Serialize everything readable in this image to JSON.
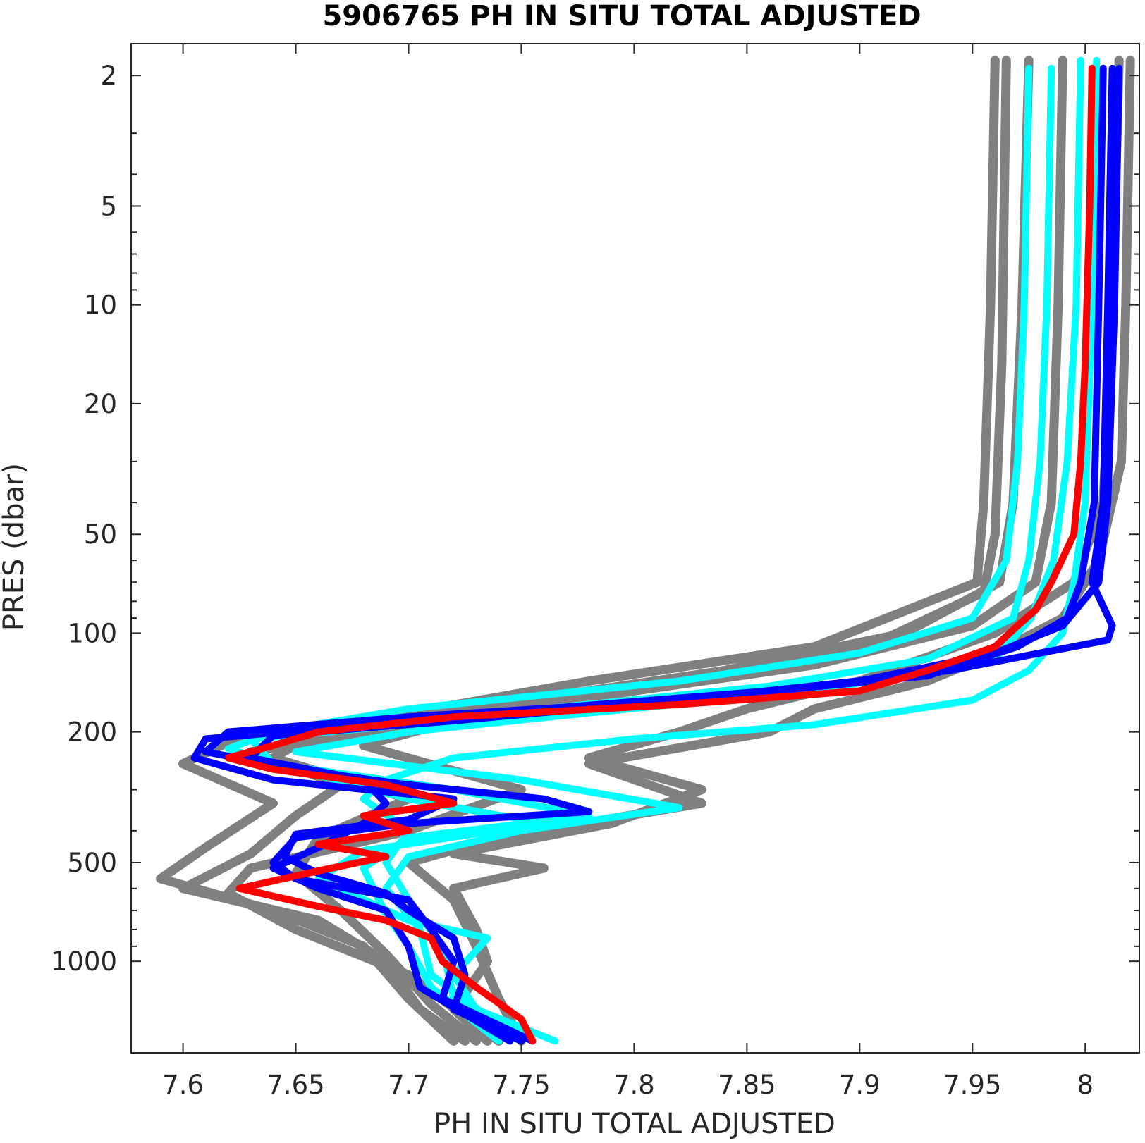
{
  "chart_data": {
    "type": "line",
    "title": "5906765  PH IN SITU TOTAL ADJUSTED",
    "xlabel": "PH IN SITU TOTAL ADJUSTED",
    "ylabel": "PRES (dbar)",
    "xlim": [
      7.577,
      8.024
    ],
    "ylim": [
      1.6,
      1900
    ],
    "y_scale": "log",
    "y_reversed": true,
    "grid": false,
    "x_ticks": [
      7.6,
      7.65,
      7.7,
      7.75,
      7.8,
      7.85,
      7.9,
      7.95,
      8.0
    ],
    "x_tick_labels": [
      "7.6",
      "7.65",
      "7.7",
      "7.75",
      "7.8",
      "7.85",
      "7.9",
      "7.95",
      "8"
    ],
    "y_ticks": [
      2,
      5,
      10,
      20,
      50,
      100,
      200,
      500,
      1000
    ],
    "y_tick_labels": [
      "2",
      "5",
      "10",
      "20",
      "50",
      "100",
      "200",
      "500",
      "1000"
    ],
    "colors": {
      "gray": "#808080",
      "cyan": "#00ffff",
      "blue": "#0000ff",
      "red": "#ff0000"
    },
    "series": [
      {
        "color": "gray",
        "points": [
          [
            7.96,
            1.8
          ],
          [
            7.958,
            10
          ],
          [
            7.955,
            40
          ],
          [
            7.952,
            70
          ],
          [
            7.88,
            110
          ],
          [
            7.78,
            140
          ],
          [
            7.7,
            175
          ],
          [
            7.62,
            215
          ],
          [
            7.6,
            250
          ],
          [
            7.64,
            330
          ],
          [
            7.61,
            450
          ],
          [
            7.59,
            560
          ],
          [
            7.64,
            700
          ],
          [
            7.68,
            900
          ],
          [
            7.7,
            1300
          ],
          [
            7.72,
            1750
          ]
        ]
      },
      {
        "color": "gray",
        "points": [
          [
            7.975,
            1.8
          ],
          [
            7.972,
            10
          ],
          [
            7.968,
            40
          ],
          [
            7.962,
            70
          ],
          [
            7.92,
            100
          ],
          [
            7.84,
            130
          ],
          [
            7.74,
            165
          ],
          [
            7.66,
            200
          ],
          [
            7.64,
            240
          ],
          [
            7.7,
            320
          ],
          [
            7.66,
            420
          ],
          [
            7.65,
            540
          ],
          [
            7.67,
            700
          ],
          [
            7.69,
            950
          ],
          [
            7.71,
            1350
          ],
          [
            7.73,
            1750
          ]
        ]
      },
      {
        "color": "gray",
        "points": [
          [
            7.99,
            1.8
          ],
          [
            7.988,
            10
          ],
          [
            7.985,
            40
          ],
          [
            7.978,
            70
          ],
          [
            7.95,
            95
          ],
          [
            7.88,
            125
          ],
          [
            7.8,
            150
          ],
          [
            7.72,
            185
          ],
          [
            7.68,
            220
          ],
          [
            7.75,
            300
          ],
          [
            7.7,
            400
          ],
          [
            7.63,
            520
          ],
          [
            7.62,
            620
          ],
          [
            7.65,
            800
          ],
          [
            7.7,
            1100
          ],
          [
            7.74,
            1750
          ]
        ]
      },
      {
        "color": "gray",
        "points": [
          [
            8.015,
            1.8
          ],
          [
            8.012,
            10
          ],
          [
            8.008,
            40
          ],
          [
            7.995,
            70
          ],
          [
            7.96,
            100
          ],
          [
            7.9,
            140
          ],
          [
            7.85,
            170
          ],
          [
            7.82,
            200
          ],
          [
            7.78,
            240
          ],
          [
            7.83,
            300
          ],
          [
            7.79,
            380
          ],
          [
            7.72,
            470
          ],
          [
            7.76,
            520
          ],
          [
            7.72,
            600
          ],
          [
            7.73,
            800
          ],
          [
            7.735,
            1000
          ],
          [
            7.72,
            1400
          ],
          [
            7.735,
            1750
          ]
        ]
      },
      {
        "color": "gray",
        "points": [
          [
            8.02,
            1.8
          ],
          [
            8.018,
            10
          ],
          [
            8.016,
            30
          ],
          [
            8.006,
            60
          ],
          [
            7.99,
            90
          ],
          [
            7.96,
            115
          ],
          [
            7.93,
            140
          ],
          [
            7.88,
            170
          ],
          [
            7.86,
            200
          ],
          [
            7.78,
            250
          ],
          [
            7.83,
            330
          ],
          [
            7.74,
            420
          ],
          [
            7.7,
            500
          ],
          [
            7.72,
            650
          ],
          [
            7.73,
            900
          ],
          [
            7.74,
            1300
          ],
          [
            7.75,
            1750
          ]
        ]
      },
      {
        "color": "gray",
        "points": [
          [
            7.965,
            1.8
          ],
          [
            7.963,
            15
          ],
          [
            7.96,
            50
          ],
          [
            7.955,
            75
          ],
          [
            7.91,
            105
          ],
          [
            7.83,
            135
          ],
          [
            7.76,
            160
          ],
          [
            7.7,
            190
          ],
          [
            7.63,
            230
          ],
          [
            7.67,
            290
          ],
          [
            7.65,
            360
          ],
          [
            7.63,
            470
          ],
          [
            7.6,
            600
          ],
          [
            7.66,
            750
          ],
          [
            7.69,
            1000
          ],
          [
            7.705,
            1400
          ],
          [
            7.725,
            1750
          ]
        ]
      },
      {
        "color": "cyan",
        "points": [
          [
            7.975,
            1.9
          ],
          [
            7.973,
            10
          ],
          [
            7.97,
            30
          ],
          [
            7.965,
            60
          ],
          [
            7.95,
            90
          ],
          [
            7.9,
            115
          ],
          [
            7.82,
            140
          ],
          [
            7.7,
            170
          ],
          [
            7.64,
            200
          ],
          [
            7.62,
            225
          ],
          [
            7.65,
            260
          ],
          [
            7.7,
            320
          ],
          [
            7.76,
            380
          ],
          [
            7.68,
            460
          ],
          [
            7.66,
            560
          ],
          [
            7.7,
            750
          ],
          [
            7.735,
            850
          ],
          [
            7.72,
            1100
          ],
          [
            7.73,
            1400
          ],
          [
            7.765,
            1750
          ]
        ]
      },
      {
        "color": "cyan",
        "points": [
          [
            7.985,
            1.9
          ],
          [
            7.983,
            10
          ],
          [
            7.98,
            30
          ],
          [
            7.975,
            60
          ],
          [
            7.968,
            90
          ],
          [
            7.93,
            120
          ],
          [
            7.86,
            145
          ],
          [
            7.76,
            170
          ],
          [
            7.7,
            190
          ],
          [
            7.63,
            210
          ],
          [
            7.64,
            250
          ],
          [
            7.72,
            300
          ],
          [
            7.78,
            360
          ],
          [
            7.7,
            420
          ],
          [
            7.68,
            520
          ],
          [
            7.69,
            720
          ],
          [
            7.7,
            900
          ],
          [
            7.71,
            1200
          ],
          [
            7.74,
            1750
          ]
        ]
      },
      {
        "color": "cyan",
        "points": [
          [
            7.998,
            1.8
          ],
          [
            7.996,
            10
          ],
          [
            7.992,
            30
          ],
          [
            7.986,
            60
          ],
          [
            7.976,
            90
          ],
          [
            7.96,
            120
          ],
          [
            7.88,
            150
          ],
          [
            7.78,
            175
          ],
          [
            7.7,
            200
          ],
          [
            7.65,
            230
          ],
          [
            7.75,
            280
          ],
          [
            7.82,
            340
          ],
          [
            7.75,
            400
          ],
          [
            7.7,
            480
          ],
          [
            7.69,
            600
          ],
          [
            7.705,
            800
          ],
          [
            7.71,
            1100
          ],
          [
            7.75,
            1750
          ]
        ]
      },
      {
        "color": "cyan",
        "points": [
          [
            8.005,
            1.8
          ],
          [
            8.003,
            10
          ],
          [
            8.0,
            40
          ],
          [
            7.995,
            70
          ],
          [
            7.99,
            100
          ],
          [
            7.975,
            130
          ],
          [
            7.95,
            160
          ],
          [
            7.88,
            190
          ],
          [
            7.8,
            210
          ],
          [
            7.72,
            240
          ],
          [
            7.69,
            280
          ],
          [
            7.68,
            320
          ],
          [
            7.7,
            400
          ],
          [
            7.69,
            500
          ],
          [
            7.7,
            650
          ],
          [
            7.715,
            900
          ],
          [
            7.72,
            1300
          ],
          [
            7.755,
            1750
          ]
        ]
      },
      {
        "color": "blue",
        "points": [
          [
            8.008,
            1.9
          ],
          [
            8.006,
            10
          ],
          [
            8.004,
            40
          ],
          [
            7.998,
            70
          ],
          [
            7.992,
            90
          ],
          [
            7.97,
            110
          ],
          [
            7.93,
            135
          ],
          [
            7.82,
            160
          ],
          [
            7.7,
            180
          ],
          [
            7.62,
            200
          ],
          [
            7.61,
            230
          ],
          [
            7.65,
            260
          ],
          [
            7.7,
            290
          ],
          [
            7.76,
            320
          ],
          [
            7.78,
            350
          ],
          [
            7.7,
            380
          ],
          [
            7.65,
            420
          ],
          [
            7.64,
            500
          ],
          [
            7.65,
            560
          ],
          [
            7.7,
            650
          ],
          [
            7.71,
            800
          ],
          [
            7.72,
            1000
          ],
          [
            7.715,
            1300
          ],
          [
            7.755,
            1750
          ]
        ]
      },
      {
        "color": "blue",
        "points": [
          [
            8.012,
            1.9
          ],
          [
            8.01,
            10
          ],
          [
            8.008,
            40
          ],
          [
            8.003,
            70
          ],
          [
            8.012,
            95
          ],
          [
            8.01,
            105
          ],
          [
            7.98,
            115
          ],
          [
            7.94,
            130
          ],
          [
            7.86,
            150
          ],
          [
            7.76,
            170
          ],
          [
            7.68,
            190
          ],
          [
            7.61,
            210
          ],
          [
            7.605,
            240
          ],
          [
            7.64,
            280
          ],
          [
            7.72,
            320
          ],
          [
            7.7,
            370
          ],
          [
            7.65,
            410
          ],
          [
            7.645,
            480
          ],
          [
            7.66,
            540
          ],
          [
            7.69,
            620
          ],
          [
            7.7,
            700
          ],
          [
            7.72,
            850
          ],
          [
            7.725,
            1100
          ],
          [
            7.72,
            1400
          ],
          [
            7.75,
            1750
          ]
        ]
      },
      {
        "color": "blue",
        "points": [
          [
            8.015,
            1.9
          ],
          [
            8.013,
            10
          ],
          [
            8.01,
            40
          ],
          [
            8.006,
            70
          ],
          [
            7.99,
            95
          ],
          [
            7.96,
            115
          ],
          [
            7.9,
            140
          ],
          [
            7.82,
            160
          ],
          [
            7.72,
            185
          ],
          [
            7.64,
            205
          ],
          [
            7.63,
            240
          ],
          [
            7.68,
            280
          ],
          [
            7.69,
            330
          ],
          [
            7.68,
            380
          ],
          [
            7.66,
            450
          ],
          [
            7.64,
            520
          ],
          [
            7.66,
            600
          ],
          [
            7.69,
            700
          ],
          [
            7.7,
            900
          ],
          [
            7.705,
            1200
          ],
          [
            7.745,
            1750
          ]
        ]
      },
      {
        "color": "red",
        "points": [
          [
            8.003,
            1.9
          ],
          [
            8.002,
            5
          ],
          [
            8.0,
            15
          ],
          [
            7.998,
            30
          ],
          [
            7.995,
            50
          ],
          [
            7.985,
            70
          ],
          [
            7.978,
            85
          ],
          [
            7.97,
            95
          ],
          [
            7.96,
            110
          ],
          [
            7.93,
            130
          ],
          [
            7.9,
            150
          ],
          [
            7.82,
            165
          ],
          [
            7.72,
            180
          ],
          [
            7.66,
            200
          ],
          [
            7.64,
            220
          ],
          [
            7.62,
            240
          ],
          [
            7.64,
            260
          ],
          [
            7.69,
            290
          ],
          [
            7.72,
            330
          ],
          [
            7.68,
            360
          ],
          [
            7.7,
            400
          ],
          [
            7.66,
            440
          ],
          [
            7.69,
            480
          ],
          [
            7.66,
            530
          ],
          [
            7.625,
            600
          ],
          [
            7.66,
            680
          ],
          [
            7.69,
            750
          ],
          [
            7.71,
            850
          ],
          [
            7.715,
            1000
          ],
          [
            7.73,
            1200
          ],
          [
            7.75,
            1500
          ],
          [
            7.755,
            1750
          ]
        ]
      }
    ]
  }
}
